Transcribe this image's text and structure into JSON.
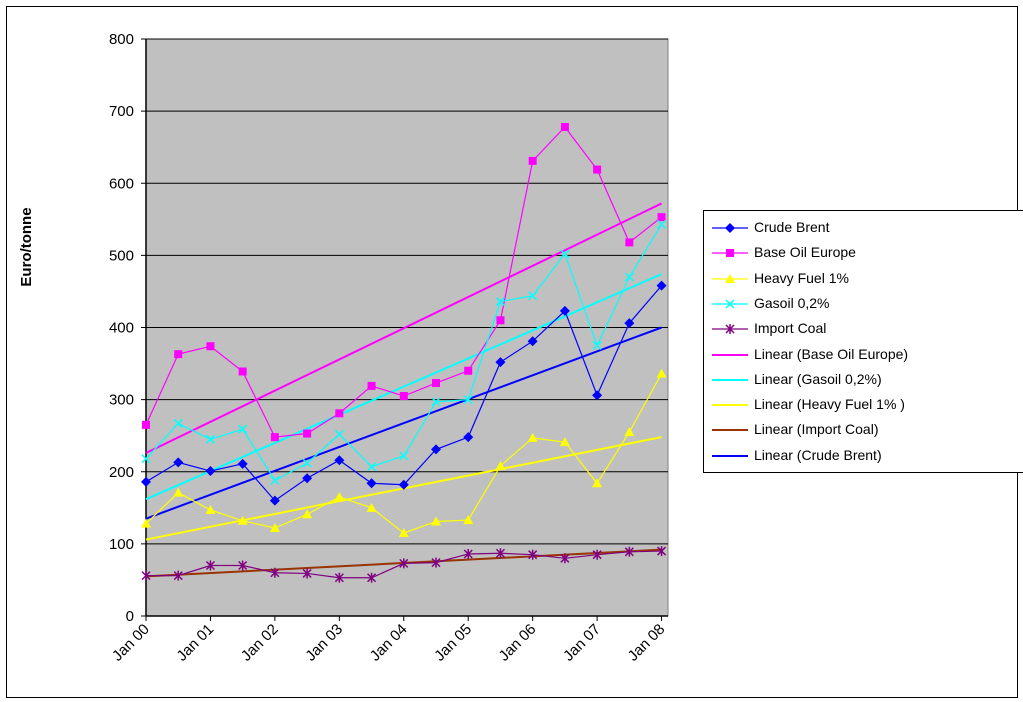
{
  "chart_data": {
    "type": "line",
    "ylabel": "Euro/tonne",
    "ylim": [
      0,
      800
    ],
    "yticks": [
      0,
      100,
      200,
      300,
      400,
      500,
      600,
      700,
      800
    ],
    "xlim": [
      2000,
      2008.1
    ],
    "x_tick_labels": [
      "Jan 00",
      "Jan 01",
      "Jan 02",
      "Jan 03",
      "Jan 04",
      "Jan 05",
      "Jan 06",
      "Jan 07",
      "Jan 08"
    ],
    "x": [
      2000,
      2000.5,
      2001,
      2001.5,
      2002,
      2002.5,
      2003,
      2003.5,
      2004,
      2004.5,
      2005,
      2005.5,
      2006,
      2006.5,
      2007,
      2007.5,
      2008
    ],
    "grid": true,
    "legend_position": "right",
    "plot_background": "#c0c0c0",
    "series": [
      {
        "name": "Crude Brent",
        "color": "#0000ff",
        "marker": "diamond",
        "values": [
          186,
          213,
          201,
          211,
          160,
          191,
          216,
          184,
          182,
          231,
          248,
          352,
          381,
          423,
          306,
          406,
          458
        ]
      },
      {
        "name": "Base Oil Europe",
        "color": "#ff00ff",
        "marker": "square",
        "values": [
          265,
          363,
          374,
          339,
          248,
          253,
          281,
          319,
          305,
          323,
          340,
          410,
          631,
          678,
          619,
          518,
          553
        ]
      },
      {
        "name": "Heavy Fuel 1%",
        "color": "#ffff00",
        "marker": "triangle",
        "values": [
          128,
          171,
          147,
          132,
          122,
          141,
          165,
          150,
          115,
          131,
          133,
          208,
          247,
          241,
          184,
          255,
          336
        ]
      },
      {
        "name": "Gasoil 0,2%",
        "color": "#00ffff",
        "marker": "x",
        "values": [
          218,
          267,
          245,
          259,
          188,
          212,
          252,
          207,
          222,
          297,
          300,
          436,
          444,
          502,
          375,
          470,
          543
        ]
      },
      {
        "name": "Import Coal",
        "color": "#800080",
        "marker": "star",
        "values": [
          56,
          56,
          70,
          70,
          60,
          59,
          53,
          53,
          73,
          74,
          86,
          87,
          85,
          80,
          85,
          89,
          90
        ]
      }
    ],
    "trendlines": [
      {
        "name": "Linear (Base Oil Europe)",
        "color": "#ff00ff",
        "start": 226,
        "end": 572
      },
      {
        "name": "Linear (Gasoil 0,2%)",
        "color": "#00ffff",
        "start": 162,
        "end": 474
      },
      {
        "name": "Linear (Heavy Fuel 1% )",
        "color": "#ffff00",
        "start": 106,
        "end": 248
      },
      {
        "name": "Linear (Import Coal)",
        "color": "#993300",
        "start": 55,
        "end": 92
      },
      {
        "name": "Linear (Crude Brent)",
        "color": "#0000ff",
        "start": 135,
        "end": 400
      }
    ]
  }
}
